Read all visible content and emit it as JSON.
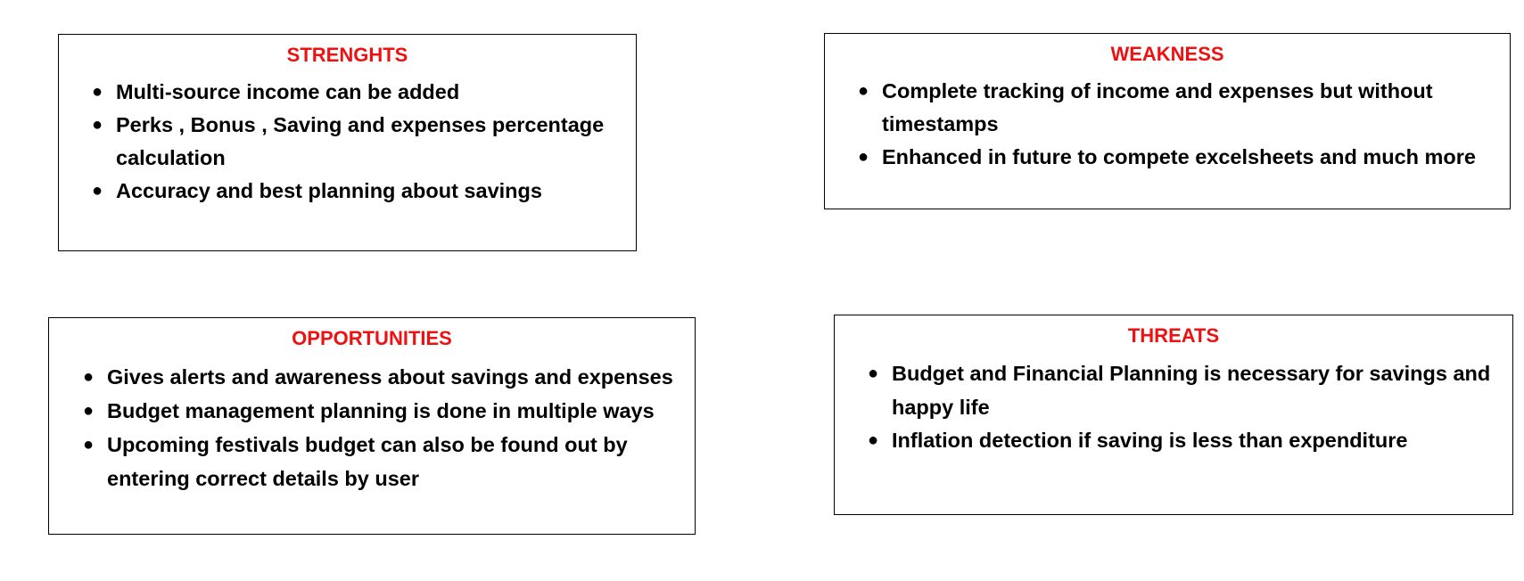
{
  "colors": {
    "title": "#ee1111",
    "text": "#000000",
    "border": "#000000",
    "background": "#ffffff"
  },
  "strengths": {
    "title": "STRENGHTS",
    "items": [
      "Multi-source income can be added",
      "Perks , Bonus , Saving and expenses percentage calculation",
      "Accuracy and best planning about savings"
    ]
  },
  "weakness": {
    "title": "WEAKNESS",
    "items": [
      "Complete tracking of income and expenses but without timestamps",
      "Enhanced in future to compete excelsheets and much more"
    ]
  },
  "opportunities": {
    "title": "OPPORTUNITIES",
    "items": [
      "Gives alerts and awareness about savings and expenses",
      "Budget management planning is done in multiple ways",
      "Upcoming festivals budget can also be found out by entering correct details by user"
    ]
  },
  "threats": {
    "title": "THREATS",
    "items": [
      "Budget and Financial Planning is necessary for savings and happy life",
      "Inflation detection if saving is less than expenditure"
    ]
  }
}
